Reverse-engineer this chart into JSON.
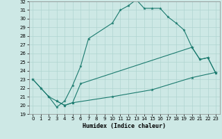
{
  "xlabel": "Humidex (Indice chaleur)",
  "xlim": [
    -0.5,
    23.5
  ],
  "ylim": [
    19,
    32
  ],
  "xticks": [
    0,
    1,
    2,
    3,
    4,
    5,
    6,
    7,
    8,
    9,
    10,
    11,
    12,
    13,
    14,
    15,
    16,
    17,
    18,
    19,
    20,
    21,
    22,
    23
  ],
  "yticks": [
    19,
    20,
    21,
    22,
    23,
    24,
    25,
    26,
    27,
    28,
    29,
    30,
    31,
    32
  ],
  "bg_color": "#cde8e5",
  "line_color": "#1a7a6e",
  "curve1_x": [
    0,
    1,
    2,
    3,
    4,
    5,
    6,
    7,
    10,
    11,
    12,
    13,
    14,
    15,
    16,
    17,
    18,
    19,
    20,
    21,
    22,
    23
  ],
  "curve1_y": [
    23,
    22,
    21,
    19.8,
    20.5,
    22.3,
    24.5,
    27.7,
    29.5,
    31.0,
    31.5,
    32.2,
    31.2,
    31.2,
    31.2,
    30.2,
    29.5,
    28.7,
    26.7,
    25.3,
    25.5,
    23.7
  ],
  "curve2_x": [
    0,
    1,
    2,
    3,
    4,
    5,
    6,
    20,
    21,
    22,
    23
  ],
  "curve2_y": [
    23,
    22,
    21,
    20.5,
    20.0,
    20.3,
    22.5,
    26.7,
    25.3,
    25.5,
    23.7
  ],
  "curve3_x": [
    3,
    4,
    5,
    10,
    15,
    20,
    23
  ],
  "curve3_y": [
    20.5,
    20.0,
    20.3,
    21.0,
    21.8,
    23.2,
    23.8
  ],
  "grid_color": "#afd4d0",
  "tick_fontsize": 5.0,
  "xlabel_fontsize": 6.0
}
